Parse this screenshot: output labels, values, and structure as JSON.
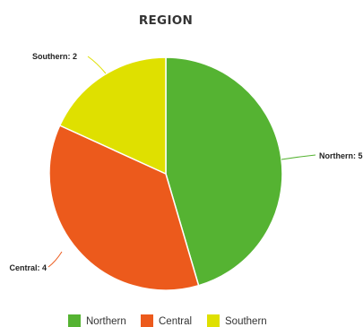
{
  "chart_data": {
    "type": "pie",
    "title": "REGION",
    "slices": [
      {
        "name": "Northern",
        "value": 5,
        "label": "Northern: 5",
        "color": "#55b332"
      },
      {
        "name": "Central",
        "value": 4,
        "label": "Central: 4",
        "color": "#ec5a1c"
      },
      {
        "name": "Southern",
        "value": 2,
        "label": "Southern: 2",
        "color": "#dfe000"
      }
    ],
    "legend": {
      "placement": "bottom",
      "items": [
        "Northern",
        "Central",
        "Southern"
      ]
    }
  }
}
